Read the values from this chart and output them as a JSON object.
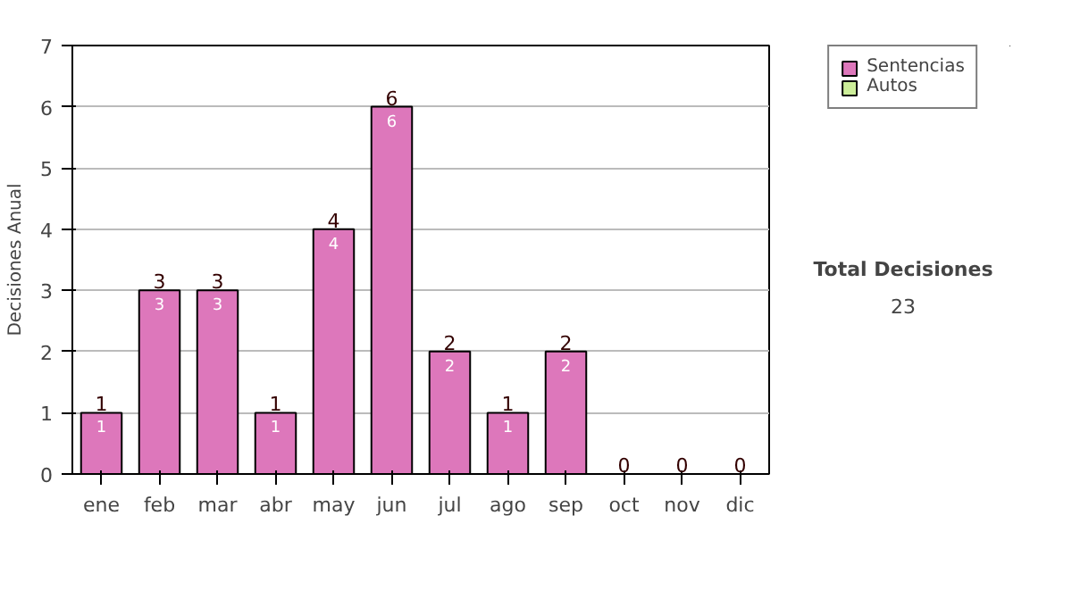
{
  "chart_data": {
    "type": "bar",
    "stacked": true,
    "ylabel": "Decisiones Anual",
    "categories": [
      "ene",
      "feb",
      "mar",
      "abr",
      "may",
      "jun",
      "jul",
      "ago",
      "sep",
      "oct",
      "nov",
      "dic"
    ],
    "series": [
      {
        "name": "Sentencias",
        "color": "#dd77bb",
        "values": [
          1,
          3,
          3,
          1,
          4,
          6,
          2,
          1,
          2,
          0,
          0,
          0
        ],
        "value_labels": [
          "1",
          "3",
          "3",
          "1",
          "4",
          "6",
          "2",
          "1",
          "2",
          null,
          null,
          null
        ]
      },
      {
        "name": "Autos",
        "color": "#ccee99",
        "values": [
          0,
          0,
          0,
          0,
          0,
          0,
          0,
          0,
          0,
          0,
          0,
          0
        ]
      }
    ],
    "totals": [
      "1",
      "3",
      "3",
      "1",
      "4",
      "6",
      "2",
      "1",
      "2",
      "0",
      "0",
      "0"
    ],
    "ylim": [
      0,
      7
    ],
    "yticks": [
      0,
      1,
      2,
      3,
      4,
      5,
      6,
      7
    ],
    "grid": "y",
    "legend": "right",
    "annotations": [
      "Total Decisiones",
      "23"
    ]
  }
}
